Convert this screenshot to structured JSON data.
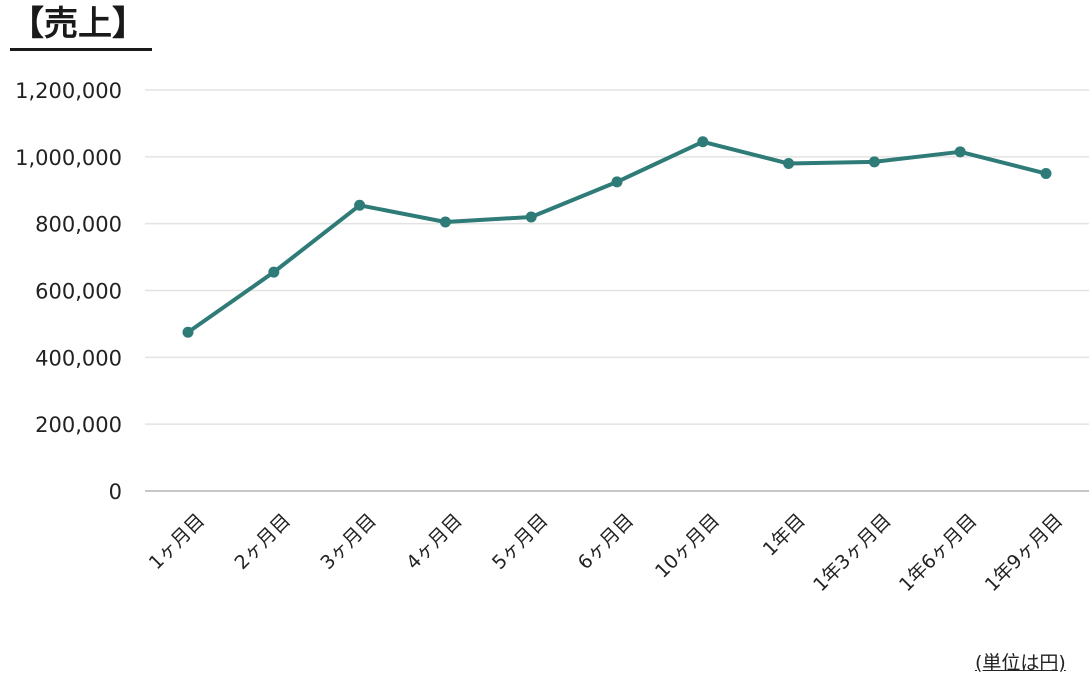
{
  "chart_data": {
    "type": "line",
    "title": "【売上】",
    "unit_note": "(単位は円)",
    "categories": [
      "1ヶ月目",
      "2ヶ月目",
      "3ヶ月目",
      "4ヶ月目",
      "5ヶ月目",
      "6ヶ月目",
      "10ヶ月目",
      "1年目",
      "1年3ヶ月目",
      "1年6ヶ月目",
      "1年9ヶ月目"
    ],
    "values": [
      475000,
      655000,
      855000,
      805000,
      820000,
      925000,
      1045000,
      980000,
      985000,
      1015000,
      950000
    ],
    "y_ticks": [
      "0",
      "200,000",
      "400,000",
      "600,000",
      "800,000",
      "1,000,000",
      "1,200,000"
    ],
    "ylim": [
      0,
      1200000
    ],
    "grid": true,
    "legend": "none",
    "line_color": "#2e7b78",
    "grid_color": "#e3e3e3",
    "baseline_color": "#c8c8c8"
  }
}
